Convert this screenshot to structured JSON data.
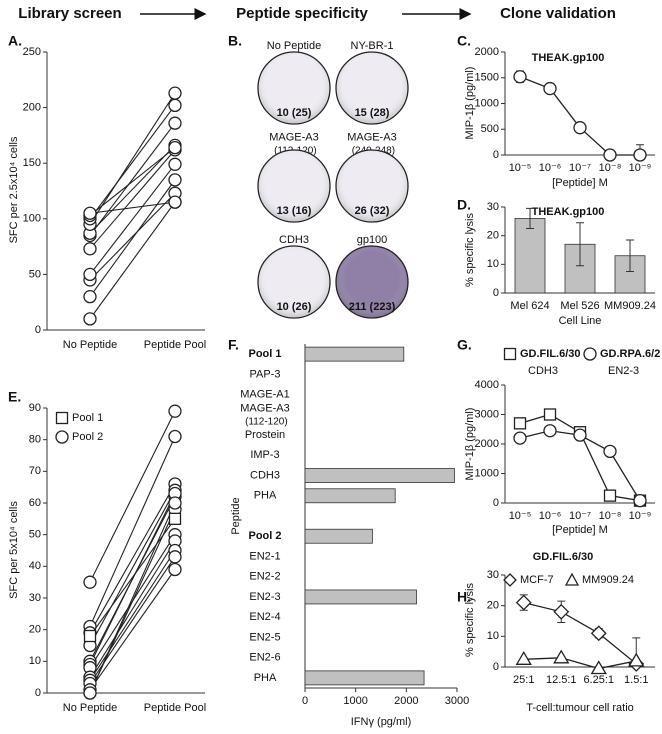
{
  "headers": [
    "Library screen",
    "Peptide specificity",
    "Clone validation"
  ],
  "wells_panel": {
    "panel": "B.",
    "wells": [
      {
        "name": "No Peptide",
        "count": "10 (25)",
        "color": "#eeecf2"
      },
      {
        "name": "NY-BR-1",
        "count": "15 (28)",
        "color": "#eeecf2"
      },
      {
        "name": "MAGE-A3 (112-120)",
        "count": "13 (16)",
        "color": "#eeecf2"
      },
      {
        "name": "MAGE-A3 (240-248)",
        "count": "26 (32)",
        "color": "#eeecf2"
      },
      {
        "name": "CDH3",
        "count": "10 (26)",
        "color": "#eeecf2"
      },
      {
        "name": "gp100",
        "count": "211 (223)",
        "color": "#8f80a8"
      }
    ]
  },
  "chart_data": [
    {
      "type": "slope",
      "panel": "A.",
      "ylabel": "SFC per 2.5x10⁴ cells",
      "categories": [
        "No Peptide",
        "Peptide Pool"
      ],
      "ylim": [
        0,
        250
      ],
      "yticks": [
        0,
        50,
        100,
        150,
        200,
        250
      ],
      "series": [
        {
          "marker": "circle",
          "color": "#222222",
          "values": [
            [
              10,
              115
            ],
            [
              30,
              135
            ],
            [
              45,
              123
            ],
            [
              50,
              149
            ],
            [
              73,
              162
            ],
            [
              85,
              186
            ],
            [
              87,
              166
            ],
            [
              95,
              213
            ],
            [
              100,
              202
            ],
            [
              103,
              164
            ],
            [
              105,
              115
            ]
          ]
        }
      ]
    },
    {
      "type": "line",
      "panel": "C.",
      "title": "THEAK.gp100",
      "ylabel": "MIP-1β (pg/ml)",
      "xlabel": "[Peptide] M",
      "categories": [
        "10⁻⁵",
        "10⁻⁶",
        "10⁻⁷",
        "10⁻⁸",
        "10⁻⁹"
      ],
      "ylim": [
        0,
        2000
      ],
      "yticks": [
        0,
        500,
        1000,
        1500,
        2000
      ],
      "series": [
        {
          "marker": "circle",
          "color": "#222222",
          "values": [
            1520,
            1290,
            530,
            0,
            0
          ],
          "errors": [
            110,
            90,
            30,
            null,
            200
          ]
        }
      ]
    },
    {
      "type": "bar",
      "panel": "D.",
      "title": "THEAK.gp100",
      "ylabel": "% specific lysis",
      "xlabel": "Cell Line",
      "categories": [
        "Mel 624",
        "Mel 526",
        "MM909.24"
      ],
      "values": [
        26,
        17,
        13
      ],
      "errors": [
        3.5,
        7.5,
        5.5
      ],
      "color": "#c0c0c0",
      "ylim": [
        0,
        30
      ],
      "yticks": [
        0,
        10,
        20,
        30
      ]
    },
    {
      "type": "slope",
      "panel": "E.",
      "ylabel": "SFC per 5x10⁴ cells",
      "legend": "upper left",
      "categories": [
        "No Peptide",
        "Peptide Pool"
      ],
      "ylim": [
        0,
        90
      ],
      "yticks": [
        0,
        10,
        20,
        30,
        40,
        50,
        60,
        70,
        80,
        90
      ],
      "series": [
        {
          "name": "Pool 2",
          "marker": "circle",
          "color": "#222222",
          "values": [
            [
              35,
              89
            ],
            [
              21,
              81
            ],
            [
              19,
              66
            ],
            [
              15,
              64
            ],
            [
              10,
              62
            ],
            [
              9,
              63
            ],
            [
              8,
              50
            ],
            [
              5,
              48
            ],
            [
              4,
              45
            ],
            [
              3,
              43
            ],
            [
              1,
              39
            ],
            [
              0,
              58
            ],
            [
              0,
              60
            ]
          ]
        },
        {
          "name": "Pool 1",
          "marker": "square",
          "color": "#222222",
          "values": [
            [
              18,
              55
            ]
          ]
        }
      ]
    },
    {
      "type": "barh",
      "panel": "F.",
      "xlabel": "IFNγ (pg/ml)",
      "ylabel": "Peptide",
      "categories": [
        "Pool 1",
        "PAP-3",
        "MAGE-A1",
        "MAGE-A3 (112-120)",
        "Prostein",
        "IMP-3",
        "CDH3",
        "PHA",
        null,
        "Pool 2",
        "EN2-1",
        "EN2-2",
        "EN2-3",
        "EN2-4",
        "EN2-5",
        "EN2-6",
        "PHA"
      ],
      "values": [
        1950,
        null,
        null,
        null,
        null,
        null,
        2950,
        1780,
        null,
        1330,
        null,
        null,
        2200,
        null,
        null,
        null,
        2350
      ],
      "emphasis": [
        0,
        9
      ],
      "color": "#c0c0c0",
      "xlim": [
        0,
        3000
      ],
      "xticks": [
        0,
        1000,
        2000,
        3000
      ]
    },
    {
      "type": "line",
      "panel": "G.",
      "ylabel": "MIP-1β (pg/ml)",
      "xlabel": "[Peptide] M",
      "categories": [
        "10⁻⁵",
        "10⁻⁶",
        "10⁻⁷",
        "10⁻⁸",
        "10⁻⁹"
      ],
      "ylim": [
        0,
        4000
      ],
      "yticks": [
        0,
        1000,
        2000,
        3000,
        4000
      ],
      "series": [
        {
          "name": "GD.FIL.6/30",
          "peptide": "CDH3",
          "marker": "square",
          "color": "#222222",
          "values": [
            2700,
            3000,
            2400,
            250,
            80
          ]
        },
        {
          "name": "GD.RPA.6/2",
          "peptide": "EN2-3",
          "marker": "circle",
          "color": "#222222",
          "values": [
            2200,
            2450,
            2300,
            1750,
            80
          ]
        }
      ]
    },
    {
      "type": "line",
      "panel": "H.",
      "title": "GD.FIL.6/30",
      "ylabel": "% specific lysis",
      "xlabel": "T-cell:tumour cell ratio",
      "categories": [
        "25:1",
        "12.5:1",
        "6.25:1",
        "1.5:1"
      ],
      "ylim": [
        0,
        30
      ],
      "yticks": [
        0,
        10,
        20,
        30
      ],
      "series": [
        {
          "name": "MCF-7",
          "marker": "diamond",
          "color": "#222222",
          "values": [
            21,
            18,
            11,
            1
          ],
          "errors": [
            2.5,
            3.5,
            1.5,
            8.5
          ]
        },
        {
          "name": "MM909.24",
          "marker": "triangle",
          "color": "#222222",
          "values": [
            2.5,
            3,
            -0.5,
            2
          ]
        }
      ]
    }
  ]
}
